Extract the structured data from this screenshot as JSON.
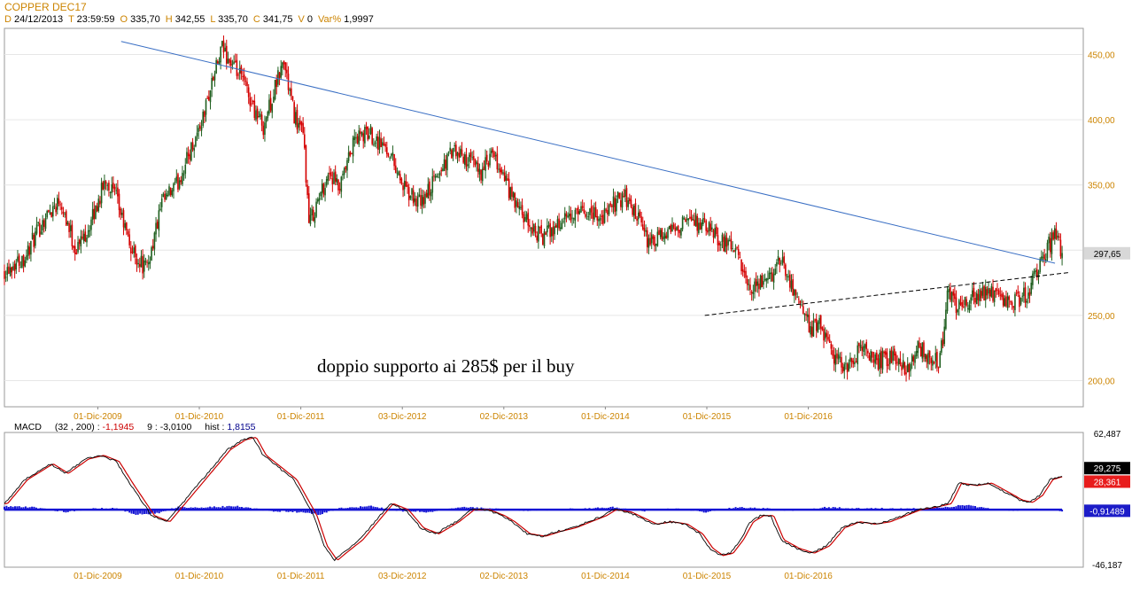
{
  "header": {
    "title": "COPPER DEC17",
    "ohlc": [
      {
        "k": "D",
        "v": "24/12/2013"
      },
      {
        "k": "T",
        "v": "23:59:59"
      },
      {
        "k": "O",
        "v": "335,70"
      },
      {
        "k": "H",
        "v": "342,55"
      },
      {
        "k": "L",
        "v": "335,70"
      },
      {
        "k": "C",
        "v": "341,75"
      },
      {
        "k": "V",
        "v": "0"
      },
      {
        "k": "Var%",
        "v": "1,9997"
      }
    ]
  },
  "colors": {
    "up": "#1f5f1f",
    "down": "#d40000",
    "trendline": "#3a6fc4",
    "support": "#000000",
    "macd_line": "#000000",
    "signal_line": "#cc0000",
    "histogram": "#1414d4",
    "axis_text": "#cc8400",
    "grid": "#c0c0c0"
  },
  "chart_data": [
    {
      "type": "candlestick",
      "title": "COPPER DEC17",
      "annotation": "doppio supporto ai 285$ per il buy",
      "x_tick_labels": [
        "01-Dic-2009",
        "01-Dic-2010",
        "01-Dic-2011",
        "03-Dic-2012",
        "02-Dic-2013",
        "01-Dic-2014",
        "01-Dic-2015",
        "01-Dic-2016"
      ],
      "y_ticks": [
        200,
        250,
        300,
        350,
        400,
        450
      ],
      "y_tick_labels": [
        "200,00",
        "250,00",
        "300,00",
        "350,00",
        "400,00",
        "450,00"
      ],
      "ylim": [
        180,
        470
      ],
      "last_price_label": "297,65",
      "last_price": 297.65,
      "close_path": [
        {
          "t": 2009.0,
          "v": 285
        },
        {
          "t": 2009.2,
          "v": 295
        },
        {
          "t": 2009.4,
          "v": 325
        },
        {
          "t": 2009.55,
          "v": 340
        },
        {
          "t": 2009.7,
          "v": 300
        },
        {
          "t": 2009.85,
          "v": 320
        },
        {
          "t": 2010.0,
          "v": 355
        },
        {
          "t": 2010.1,
          "v": 340
        },
        {
          "t": 2010.25,
          "v": 300
        },
        {
          "t": 2010.4,
          "v": 285
        },
        {
          "t": 2010.55,
          "v": 335
        },
        {
          "t": 2010.7,
          "v": 350
        },
        {
          "t": 2010.85,
          "v": 380
        },
        {
          "t": 2010.95,
          "v": 400
        },
        {
          "t": 2011.05,
          "v": 430
        },
        {
          "t": 2011.15,
          "v": 455
        },
        {
          "t": 2011.25,
          "v": 440
        },
        {
          "t": 2011.35,
          "v": 430
        },
        {
          "t": 2011.45,
          "v": 410
        },
        {
          "t": 2011.55,
          "v": 395
        },
        {
          "t": 2011.65,
          "v": 420
        },
        {
          "t": 2011.75,
          "v": 445
        },
        {
          "t": 2011.85,
          "v": 405
        },
        {
          "t": 2011.95,
          "v": 385
        },
        {
          "t": 2012.0,
          "v": 320
        },
        {
          "t": 2012.1,
          "v": 340
        },
        {
          "t": 2012.2,
          "v": 360
        },
        {
          "t": 2012.3,
          "v": 345
        },
        {
          "t": 2012.45,
          "v": 385
        },
        {
          "t": 2012.6,
          "v": 390
        },
        {
          "t": 2012.8,
          "v": 375
        },
        {
          "t": 2012.95,
          "v": 345
        },
        {
          "t": 2013.1,
          "v": 335
        },
        {
          "t": 2013.25,
          "v": 355
        },
        {
          "t": 2013.4,
          "v": 375
        },
        {
          "t": 2013.55,
          "v": 370
        },
        {
          "t": 2013.7,
          "v": 360
        },
        {
          "t": 2013.8,
          "v": 372
        },
        {
          "t": 2013.9,
          "v": 360
        },
        {
          "t": 2014.0,
          "v": 340
        },
        {
          "t": 2014.15,
          "v": 320
        },
        {
          "t": 2014.3,
          "v": 310
        },
        {
          "t": 2014.45,
          "v": 320
        },
        {
          "t": 2014.6,
          "v": 325
        },
        {
          "t": 2014.75,
          "v": 330
        },
        {
          "t": 2014.9,
          "v": 325
        },
        {
          "t": 2015.0,
          "v": 335
        },
        {
          "t": 2015.1,
          "v": 342
        },
        {
          "t": 2015.2,
          "v": 330
        },
        {
          "t": 2015.35,
          "v": 305
        },
        {
          "t": 2015.5,
          "v": 310
        },
        {
          "t": 2015.65,
          "v": 320
        },
        {
          "t": 2015.8,
          "v": 322
        },
        {
          "t": 2015.95,
          "v": 315
        },
        {
          "t": 2016.1,
          "v": 305
        },
        {
          "t": 2016.2,
          "v": 300
        },
        {
          "t": 2016.35,
          "v": 265
        },
        {
          "t": 2016.45,
          "v": 275
        },
        {
          "t": 2016.55,
          "v": 280
        },
        {
          "t": 2016.65,
          "v": 295
        },
        {
          "t": 2016.75,
          "v": 275
        },
        {
          "t": 2016.85,
          "v": 255
        },
        {
          "t": 2016.95,
          "v": 240
        },
        {
          "t": 2017.05,
          "v": 242
        },
        {
          "t": 2017.15,
          "v": 220
        },
        {
          "t": 2017.3,
          "v": 210
        },
        {
          "t": 2017.45,
          "v": 225
        },
        {
          "t": 2017.6,
          "v": 215
        },
        {
          "t": 2017.75,
          "v": 218
        },
        {
          "t": 2017.9,
          "v": 210
        },
        {
          "t": 2018.0,
          "v": 225
        },
        {
          "t": 2018.1,
          "v": 220
        },
        {
          "t": 2018.2,
          "v": 215
        },
        {
          "t": 2018.25,
          "v": 235
        },
        {
          "t": 2018.3,
          "v": 270
        },
        {
          "t": 2018.4,
          "v": 255
        },
        {
          "t": 2018.55,
          "v": 265
        },
        {
          "t": 2018.7,
          "v": 270
        },
        {
          "t": 2018.85,
          "v": 258
        },
        {
          "t": 2019.0,
          "v": 262
        },
        {
          "t": 2019.1,
          "v": 270
        },
        {
          "t": 2019.2,
          "v": 290
        },
        {
          "t": 2019.3,
          "v": 305
        },
        {
          "t": 2019.35,
          "v": 312
        },
        {
          "t": 2019.42,
          "v": 297.65
        }
      ],
      "trendline": [
        {
          "t": 2010.15,
          "v": 460
        },
        {
          "t": 2019.35,
          "v": 290
        }
      ],
      "support_line": [
        {
          "t": 2015.9,
          "v": 250
        },
        {
          "t": 2019.5,
          "v": 283
        }
      ]
    },
    {
      "type": "line",
      "title": "MACD",
      "legend": {
        "name": "MACD",
        "params": "(32 , 200) :",
        "macd_value": "-1,1945",
        "signal_period": "9 :",
        "signal_value": "-3,0100",
        "hist_label": "hist :",
        "hist_value": "1,8155"
      },
      "ylim": [
        -46.187,
        62.487
      ],
      "y_tick_labels": {
        "top": "62,487",
        "bottom": "-46,187"
      },
      "value_boxes": [
        {
          "label": "29,275",
          "value": 29.275,
          "fill": "#000000",
          "text": "#ffffff"
        },
        {
          "label": "28,361",
          "value": 28.361,
          "fill": "#e81c1c",
          "text": "#ffffff"
        },
        {
          "label": "-0,91489",
          "value": -0.91489,
          "fill": "#1c1cc8",
          "text": "#ffffff"
        }
      ],
      "x_tick_labels": [
        "01-Dic-2009",
        "01-Dic-2010",
        "01-Dic-2011",
        "03-Dic-2012",
        "02-Dic-2013",
        "01-Dic-2014",
        "01-Dic-2015",
        "01-Dic-2016"
      ],
      "macd_path": [
        {
          "t": 2009.0,
          "v": 5
        },
        {
          "t": 2009.2,
          "v": 25
        },
        {
          "t": 2009.45,
          "v": 38
        },
        {
          "t": 2009.6,
          "v": 30
        },
        {
          "t": 2009.8,
          "v": 42
        },
        {
          "t": 2009.95,
          "v": 45
        },
        {
          "t": 2010.1,
          "v": 40
        },
        {
          "t": 2010.25,
          "v": 20
        },
        {
          "t": 2010.45,
          "v": -5
        },
        {
          "t": 2010.6,
          "v": -10
        },
        {
          "t": 2010.75,
          "v": 5
        },
        {
          "t": 2010.9,
          "v": 20
        },
        {
          "t": 2011.05,
          "v": 35
        },
        {
          "t": 2011.2,
          "v": 50
        },
        {
          "t": 2011.35,
          "v": 58
        },
        {
          "t": 2011.45,
          "v": 60
        },
        {
          "t": 2011.55,
          "v": 45
        },
        {
          "t": 2011.7,
          "v": 35
        },
        {
          "t": 2011.85,
          "v": 25
        },
        {
          "t": 2011.95,
          "v": 10
        },
        {
          "t": 2012.05,
          "v": -5
        },
        {
          "t": 2012.15,
          "v": -30
        },
        {
          "t": 2012.25,
          "v": -42
        },
        {
          "t": 2012.35,
          "v": -35
        },
        {
          "t": 2012.5,
          "v": -25
        },
        {
          "t": 2012.65,
          "v": -10
        },
        {
          "t": 2012.8,
          "v": 5
        },
        {
          "t": 2012.95,
          "v": 0
        },
        {
          "t": 2013.1,
          "v": -15
        },
        {
          "t": 2013.25,
          "v": -20
        },
        {
          "t": 2013.45,
          "v": -10
        },
        {
          "t": 2013.6,
          "v": 0
        },
        {
          "t": 2013.75,
          "v": 0
        },
        {
          "t": 2013.9,
          "v": -5
        },
        {
          "t": 2014.0,
          "v": -10
        },
        {
          "t": 2014.15,
          "v": -20
        },
        {
          "t": 2014.3,
          "v": -22
        },
        {
          "t": 2014.45,
          "v": -18
        },
        {
          "t": 2014.6,
          "v": -15
        },
        {
          "t": 2014.75,
          "v": -10
        },
        {
          "t": 2014.9,
          "v": -5
        },
        {
          "t": 2015.0,
          "v": 0
        },
        {
          "t": 2015.15,
          "v": -2
        },
        {
          "t": 2015.3,
          "v": -8
        },
        {
          "t": 2015.4,
          "v": -12
        },
        {
          "t": 2015.55,
          "v": -10
        },
        {
          "t": 2015.7,
          "v": -12
        },
        {
          "t": 2015.85,
          "v": -20
        },
        {
          "t": 2015.95,
          "v": -32
        },
        {
          "t": 2016.05,
          "v": -38
        },
        {
          "t": 2016.15,
          "v": -36
        },
        {
          "t": 2016.25,
          "v": -25
        },
        {
          "t": 2016.35,
          "v": -10
        },
        {
          "t": 2016.45,
          "v": -5
        },
        {
          "t": 2016.55,
          "v": -5
        },
        {
          "t": 2016.65,
          "v": -25
        },
        {
          "t": 2016.8,
          "v": -32
        },
        {
          "t": 2016.95,
          "v": -36
        },
        {
          "t": 2017.1,
          "v": -30
        },
        {
          "t": 2017.25,
          "v": -15
        },
        {
          "t": 2017.4,
          "v": -10
        },
        {
          "t": 2017.55,
          "v": -12
        },
        {
          "t": 2017.7,
          "v": -10
        },
        {
          "t": 2017.85,
          "v": -5
        },
        {
          "t": 2018.0,
          "v": 0
        },
        {
          "t": 2018.15,
          "v": 2
        },
        {
          "t": 2018.3,
          "v": 5
        },
        {
          "t": 2018.4,
          "v": 22
        },
        {
          "t": 2018.55,
          "v": 20
        },
        {
          "t": 2018.7,
          "v": 22
        },
        {
          "t": 2018.85,
          "v": 15
        },
        {
          "t": 2019.0,
          "v": 8
        },
        {
          "t": 2019.1,
          "v": 6
        },
        {
          "t": 2019.2,
          "v": 12
        },
        {
          "t": 2019.3,
          "v": 25
        },
        {
          "t": 2019.42,
          "v": 28
        }
      ],
      "histogram_path": [
        {
          "t": 2009.0,
          "v": 3
        },
        {
          "t": 2009.3,
          "v": 2
        },
        {
          "t": 2009.6,
          "v": -2
        },
        {
          "t": 2009.9,
          "v": 1
        },
        {
          "t": 2010.1,
          "v": 1
        },
        {
          "t": 2010.3,
          "v": -4
        },
        {
          "t": 2010.5,
          "v": -3
        },
        {
          "t": 2010.7,
          "v": 2
        },
        {
          "t": 2011.0,
          "v": 2
        },
        {
          "t": 2011.3,
          "v": 3
        },
        {
          "t": 2011.6,
          "v": -1
        },
        {
          "t": 2011.9,
          "v": -2
        },
        {
          "t": 2012.1,
          "v": -4
        },
        {
          "t": 2012.3,
          "v": 1
        },
        {
          "t": 2012.6,
          "v": 3
        },
        {
          "t": 2012.9,
          "v": -1
        },
        {
          "t": 2013.2,
          "v": -2
        },
        {
          "t": 2013.5,
          "v": 2
        },
        {
          "t": 2013.8,
          "v": 1
        },
        {
          "t": 2014.1,
          "v": -1
        },
        {
          "t": 2014.4,
          "v": 0
        },
        {
          "t": 2014.7,
          "v": 1
        },
        {
          "t": 2015.0,
          "v": 2
        },
        {
          "t": 2015.3,
          "v": -1
        },
        {
          "t": 2015.6,
          "v": 1
        },
        {
          "t": 2015.9,
          "v": -2
        },
        {
          "t": 2016.2,
          "v": 2
        },
        {
          "t": 2016.5,
          "v": 1
        },
        {
          "t": 2016.8,
          "v": -1
        },
        {
          "t": 2017.1,
          "v": 2
        },
        {
          "t": 2017.4,
          "v": 1
        },
        {
          "t": 2017.7,
          "v": 1
        },
        {
          "t": 2018.0,
          "v": 1
        },
        {
          "t": 2018.3,
          "v": 2
        },
        {
          "t": 2018.45,
          "v": 4
        },
        {
          "t": 2018.7,
          "v": 1
        },
        {
          "t": 2019.0,
          "v": -1
        },
        {
          "t": 2019.2,
          "v": 1
        },
        {
          "t": 2019.42,
          "v": -0.9
        }
      ]
    }
  ]
}
